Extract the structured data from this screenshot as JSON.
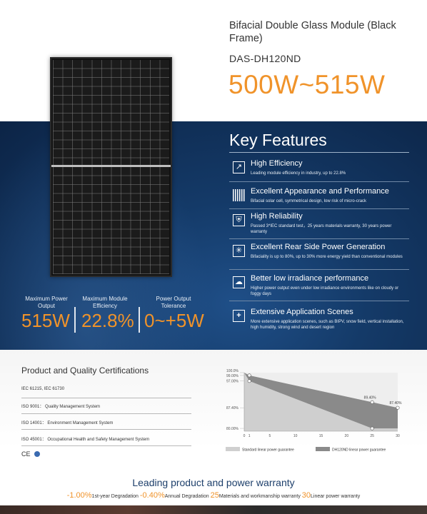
{
  "header": {
    "title": "Bifacial Double Glass Module (Black Frame)",
    "model": "DAS-DH120ND",
    "power_range": "500W~515W"
  },
  "specs": [
    {
      "label": "Maximum Power Output",
      "value": "515W"
    },
    {
      "label": "Maximum Module Efficiency",
      "value": "22.8%"
    },
    {
      "label": "Power Output Tolerance",
      "value": "0~+5W"
    }
  ],
  "key_features": {
    "title": "Key Features",
    "items": [
      {
        "icon": "efficiency-chart-icon",
        "heading": "High Efficiency",
        "desc": "Leading module efficiency in industry, up to 22.8%"
      },
      {
        "icon": "solar-cell-icon",
        "heading": "Excellent Appearance and Performance",
        "desc": "Bifacial solar cell, symmetrical design, low risk of micro-crack"
      },
      {
        "icon": "shield-icon",
        "heading": "High Reliability",
        "desc": "Passed 3*IEC standard test，25 years materials warranty, 30 years power warranty"
      },
      {
        "icon": "sun-reflection-icon",
        "heading": "Excellent Rear Side Power Generation",
        "desc": "Bifaciality is up to 80%, up to 30% more energy yield than conventional modules"
      },
      {
        "icon": "cloud-icon",
        "heading": "Better low irradiance performance",
        "desc": "Higher power output even under low irradiance environments like on cloudy or foggy days"
      },
      {
        "icon": "plus-icon",
        "heading": "Extensive Application Scenes",
        "desc": "More extensive application scenes, such as BIPV, snow field, vertical installation, high humidity, strong wind and desert region"
      }
    ]
  },
  "certifications": {
    "title": "Product and Quality Certifications",
    "items": [
      "IEC 61215, IEC 61730",
      "ISO 9001： Quality Management System",
      "ISO 14001： Environment Management System",
      "ISO 45001： Occupational Health and Safety Management System"
    ],
    "logos": "CE"
  },
  "chart_data": {
    "type": "area",
    "x_ticks": [
      0,
      1,
      5,
      10,
      15,
      20,
      25,
      30
    ],
    "y_ticks": [
      "100.0%",
      "99.00%",
      "97.00%",
      "87.40%",
      "80.00%"
    ],
    "ylim": [
      79,
      100
    ],
    "xlim": [
      0,
      30
    ],
    "series": [
      {
        "name": "Standard linear power guarantee",
        "color": "#cfcfcf",
        "points": [
          [
            0,
            100
          ],
          [
            1,
            97
          ],
          [
            25,
            80
          ],
          [
            30,
            80
          ]
        ]
      },
      {
        "name": "DH120ND linear power guarantee",
        "color": "#8a8a8a",
        "points": [
          [
            0,
            100
          ],
          [
            1,
            99
          ],
          [
            25,
            89.4
          ],
          [
            30,
            87.4
          ]
        ]
      }
    ],
    "point_labels": [
      {
        "x": 25,
        "y": 89.4,
        "text": "89.40%"
      },
      {
        "x": 30,
        "y": 87.4,
        "text": "87.40%"
      }
    ]
  },
  "warranty": {
    "title": "Leading product and power warranty",
    "parts": [
      {
        "big": "-1.00%",
        "small": "1st-year Degradation"
      },
      {
        "big": "-0.40%",
        "small": "Annual Degradation"
      },
      {
        "big": "25",
        "small": "Materials and workmanship warranty"
      },
      {
        "big": "30",
        "small": "Linear power warranty"
      }
    ]
  },
  "colors": {
    "accent": "#f0932a",
    "band": "#143a68",
    "title_blue": "#1d3f6b"
  }
}
